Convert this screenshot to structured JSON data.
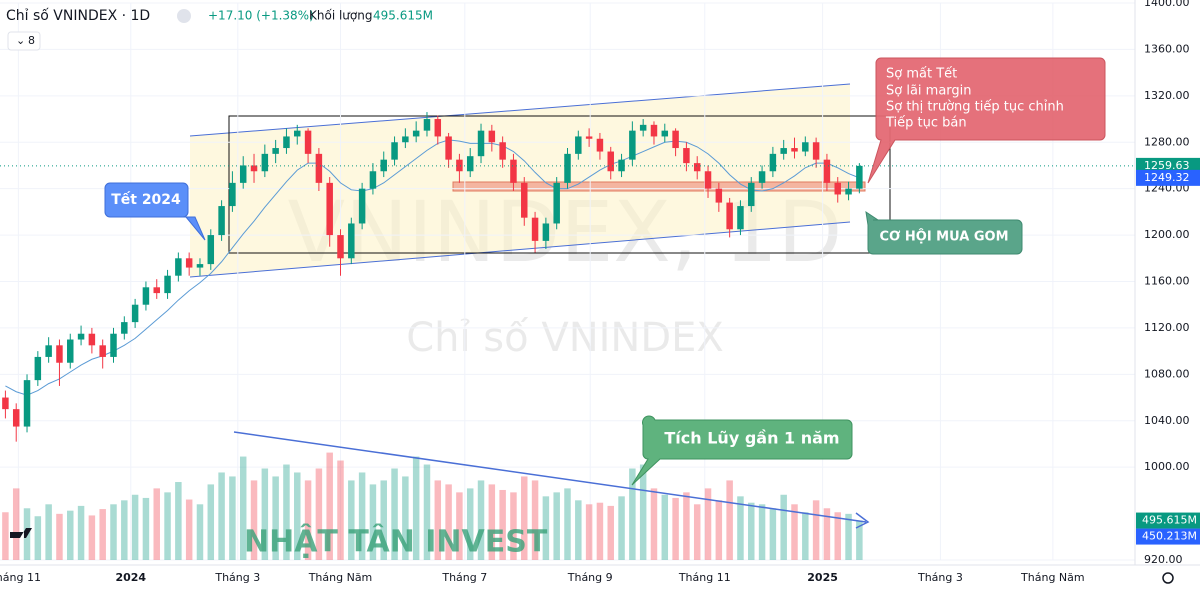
{
  "header": {
    "symbol": "Chỉ số VNINDEX · 1D",
    "change": "+17.10 (+1.38%)",
    "volume_caption": "Khối lượng",
    "indicator_count": "8"
  },
  "watermark": {
    "big": "VNINDEX, 1D",
    "name": "Chỉ số VNINDEX",
    "brand": "NHẬT TÂN INVEST"
  },
  "annotations": {
    "tet": "Tết 2024",
    "fears": [
      "Sợ mất Tết",
      "Sợ lãi margin",
      "Sợ thị trường tiếp tục chỉnh",
      "Tiếp tục bán"
    ],
    "buy": "CƠ HỘI MUA GOM",
    "accumulate": "Tích Lũy gần 1 năm"
  },
  "chart_data": {
    "type": "candlestick",
    "open": [
      1060,
      1050,
      1035,
      1075,
      1095,
      1105,
      1090,
      1110,
      1115,
      1105,
      1095,
      1115,
      1125,
      1140,
      1155,
      1150,
      1165,
      1180,
      1172,
      1175,
      1200,
      1225,
      1245,
      1260,
      1255,
      1270,
      1275,
      1285,
      1290,
      1270,
      1245,
      1200,
      1180,
      1210,
      1240,
      1255,
      1265,
      1280,
      1285,
      1290,
      1300,
      1285,
      1265,
      1255,
      1268,
      1290,
      1280,
      1265,
      1245,
      1215,
      1195,
      1210,
      1245,
      1270,
      1285,
      1283,
      1272,
      1255,
      1265,
      1290,
      1295,
      1285,
      1290,
      1275,
      1262,
      1255,
      1240,
      1228,
      1205,
      1225,
      1245,
      1255,
      1270,
      1275,
      1272,
      1280,
      1265,
      1245,
      1235,
      1240
    ],
    "high": [
      1066,
      1055,
      1080,
      1100,
      1112,
      1110,
      1115,
      1122,
      1120,
      1110,
      1120,
      1130,
      1145,
      1160,
      1162,
      1170,
      1185,
      1185,
      1180,
      1205,
      1230,
      1255,
      1268,
      1270,
      1278,
      1282,
      1292,
      1295,
      1292,
      1275,
      1250,
      1205,
      1215,
      1245,
      1262,
      1272,
      1285,
      1292,
      1298,
      1306,
      1303,
      1288,
      1270,
      1275,
      1296,
      1295,
      1285,
      1270,
      1250,
      1220,
      1215,
      1250,
      1275,
      1290,
      1292,
      1288,
      1276,
      1270,
      1298,
      1300,
      1298,
      1296,
      1292,
      1280,
      1268,
      1260,
      1245,
      1232,
      1230,
      1250,
      1260,
      1276,
      1282,
      1284,
      1285,
      1284,
      1270,
      1250,
      1246,
      1262
    ],
    "low": [
      1042,
      1022,
      1030,
      1070,
      1090,
      1070,
      1085,
      1105,
      1098,
      1085,
      1090,
      1110,
      1120,
      1135,
      1145,
      1145,
      1160,
      1165,
      1165,
      1170,
      1195,
      1220,
      1240,
      1245,
      1250,
      1262,
      1270,
      1278,
      1262,
      1238,
      1190,
      1165,
      1175,
      1205,
      1235,
      1250,
      1260,
      1275,
      1280,
      1285,
      1278,
      1258,
      1245,
      1250,
      1262,
      1272,
      1258,
      1238,
      1208,
      1185,
      1188,
      1205,
      1240,
      1265,
      1276,
      1265,
      1248,
      1250,
      1260,
      1285,
      1278,
      1280,
      1268,
      1255,
      1248,
      1232,
      1220,
      1198,
      1200,
      1220,
      1240,
      1250,
      1265,
      1266,
      1268,
      1258,
      1238,
      1228,
      1230,
      1236
    ],
    "close": [
      1050,
      1035,
      1075,
      1095,
      1105,
      1090,
      1110,
      1115,
      1105,
      1095,
      1115,
      1125,
      1140,
      1155,
      1150,
      1165,
      1180,
      1172,
      1175,
      1200,
      1225,
      1245,
      1260,
      1255,
      1270,
      1275,
      1285,
      1290,
      1270,
      1245,
      1200,
      1180,
      1210,
      1240,
      1255,
      1265,
      1280,
      1285,
      1290,
      1300,
      1285,
      1265,
      1255,
      1268,
      1290,
      1280,
      1265,
      1245,
      1215,
      1195,
      1210,
      1245,
      1270,
      1285,
      1283,
      1272,
      1255,
      1265,
      1290,
      1295,
      1285,
      1290,
      1275,
      1262,
      1255,
      1240,
      1228,
      1205,
      1225,
      1245,
      1255,
      1270,
      1275,
      1272,
      1280,
      1265,
      1245,
      1235,
      1240,
      1259.63
    ],
    "ma": [
      1070,
      1065,
      1062,
      1066,
      1072,
      1076,
      1082,
      1088,
      1093,
      1096,
      1100,
      1105,
      1111,
      1119,
      1127,
      1135,
      1144,
      1152,
      1159,
      1167,
      1177,
      1189,
      1201,
      1212,
      1224,
      1235,
      1246,
      1256,
      1262,
      1262,
      1255,
      1245,
      1239,
      1238,
      1240,
      1245,
      1252,
      1259,
      1266,
      1273,
      1279,
      1282,
      1281,
      1279,
      1279,
      1279,
      1277,
      1272,
      1264,
      1254,
      1245,
      1240,
      1240,
      1244,
      1250,
      1256,
      1261,
      1264,
      1268,
      1272,
      1276,
      1280,
      1281,
      1280,
      1276,
      1270,
      1262,
      1252,
      1244,
      1239,
      1238,
      1240,
      1245,
      1251,
      1258,
      1262,
      1262,
      1258,
      1253,
      1249.32
    ],
    "volume": [
      600,
      900,
      650,
      550,
      700,
      580,
      620,
      680,
      560,
      640,
      700,
      750,
      820,
      780,
      900,
      850,
      980,
      760,
      700,
      950,
      1100,
      1050,
      1300,
      1000,
      1150,
      1050,
      1200,
      1100,
      1000,
      1150,
      1350,
      1250,
      1000,
      1100,
      950,
      1000,
      1150,
      1050,
      1300,
      1200,
      1000,
      950,
      850,
      900,
      1000,
      950,
      880,
      850,
      1050,
      1000,
      800,
      850,
      900,
      750,
      700,
      720,
      680,
      800,
      1150,
      1200,
      900,
      820,
      780,
      850,
      700,
      900,
      750,
      1000,
      800,
      720,
      700,
      650,
      820,
      700,
      600,
      750,
      650,
      600,
      580,
      495.615
    ],
    "volume_label": "495.615M",
    "volume_ma": 450.213,
    "volume_ma_label": "450.213M",
    "volume_ylim": [
      0,
      7000
    ],
    "up_color": "#089981",
    "down_color": "#f23645",
    "ma_color": "#5b9bd5",
    "xlim": [
      -0.5,
      104.5
    ],
    "xticks": [
      {
        "value": 1.2,
        "label": "háng 11"
      },
      {
        "value": 11.6,
        "label": "2024"
      },
      {
        "value": 21.5,
        "label": "Tháng 3"
      },
      {
        "value": 31,
        "label": "Tháng Năm"
      },
      {
        "value": 42.5,
        "label": "Tháng 7"
      },
      {
        "value": 54.1,
        "label": "Tháng 9"
      },
      {
        "value": 64.7,
        "label": "Tháng 11"
      },
      {
        "value": 75.6,
        "label": "2025"
      },
      {
        "value": 86.5,
        "label": "Tháng 3"
      },
      {
        "value": 96.9,
        "label": "Tháng Năm"
      }
    ],
    "ylim": [
      920,
      1400
    ],
    "yticks": [
      {
        "value": 920,
        "label": "920.00"
      },
      {
        "value": 1000,
        "label": "1000.00"
      },
      {
        "value": 1040,
        "label": "1040.00"
      },
      {
        "value": 1080,
        "label": "1080.00"
      },
      {
        "value": 1120,
        "label": "1120.00"
      },
      {
        "value": 1160,
        "label": "1160.00"
      },
      {
        "value": 1200,
        "label": "1200.00"
      },
      {
        "value": 1240,
        "label": "1240.00"
      },
      {
        "value": 1280,
        "label": "1280.00"
      },
      {
        "value": 1320,
        "label": "1320.00"
      },
      {
        "value": 1360,
        "label": "1360.00"
      },
      {
        "value": 1400,
        "label": "1400.00"
      }
    ]
  }
}
